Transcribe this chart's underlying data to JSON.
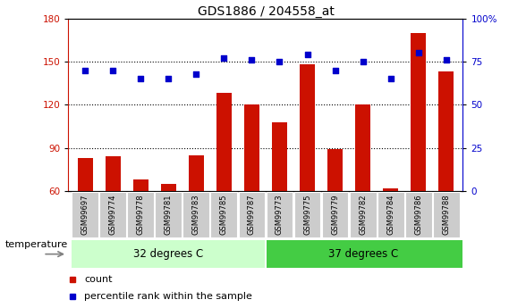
{
  "title": "GDS1886 / 204558_at",
  "samples": [
    "GSM99697",
    "GSM99774",
    "GSM99778",
    "GSM99781",
    "GSM99783",
    "GSM99785",
    "GSM99787",
    "GSM99773",
    "GSM99775",
    "GSM99779",
    "GSM99782",
    "GSM99784",
    "GSM99786",
    "GSM99788"
  ],
  "counts": [
    83,
    84,
    68,
    65,
    85,
    128,
    120,
    108,
    148,
    89,
    120,
    62,
    170,
    143
  ],
  "percentiles": [
    70,
    70,
    65,
    65,
    68,
    77,
    76,
    75,
    79,
    70,
    75,
    65,
    80,
    76
  ],
  "group1_label": "32 degrees C",
  "group2_label": "37 degrees C",
  "group1_count": 7,
  "group2_count": 7,
  "ylim_left": [
    60,
    180
  ],
  "ylim_right": [
    0,
    100
  ],
  "yticks_left": [
    60,
    90,
    120,
    150,
    180
  ],
  "yticks_right": [
    0,
    25,
    50,
    75,
    100
  ],
  "ytick_labels_right": [
    "0",
    "25",
    "50",
    "75",
    "100%"
  ],
  "bar_color": "#cc1100",
  "dot_color": "#0000cc",
  "group1_bg": "#ccffcc",
  "group2_bg": "#44cc44",
  "tick_label_bg": "#cccccc",
  "title_fontsize": 10,
  "axis_label_color_left": "#cc1100",
  "axis_label_color_right": "#0000cc"
}
